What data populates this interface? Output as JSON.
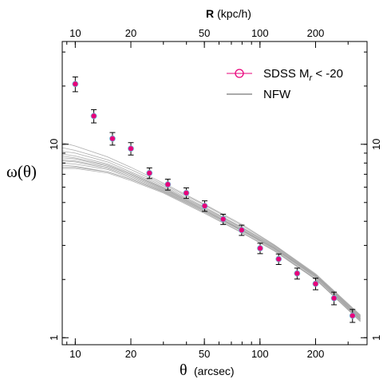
{
  "chart_data": {
    "type": "scatter",
    "log_x": true,
    "log_y": true,
    "xlim": [
      8.5,
      380
    ],
    "ylim": [
      0.92,
      34
    ],
    "x_ticks": [
      10,
      20,
      50,
      100,
      200
    ],
    "x_tick_labels": [
      "10",
      "20",
      "50",
      "100",
      "200"
    ],
    "y_ticks": [
      1,
      10
    ],
    "y_tick_labels": [
      "1",
      "10"
    ],
    "xlabel": "θ",
    "xlabel_unit": "(arcsec)",
    "ylabel": "ω(θ)",
    "top_axis": {
      "label": "R",
      "unit": "(kpc/h)",
      "ticks": [
        10,
        20,
        50,
        100,
        200
      ],
      "tick_labels": [
        "10",
        "20",
        "50",
        "100",
        "200"
      ]
    },
    "series": [
      {
        "name": "SDSS M_r < -20",
        "legend_label": "SDSS M",
        "legend_sub": "r",
        "legend_tail": " < -20",
        "marker": "circle",
        "color": "#e8007a",
        "errorbar_color": "#000000",
        "x": [
          10,
          12.6,
          15.9,
          20,
          25.2,
          31.7,
          39.9,
          50.2,
          63.2,
          79.6,
          100.2,
          126.2,
          158.9,
          200,
          251.8,
          317
        ],
        "y": [
          20.5,
          14.0,
          10.7,
          9.5,
          7.1,
          6.2,
          5.6,
          4.8,
          4.1,
          3.6,
          2.9,
          2.55,
          2.15,
          1.9,
          1.6,
          1.3
        ],
        "yerr": [
          1.8,
          1.1,
          0.8,
          0.7,
          0.45,
          0.4,
          0.35,
          0.3,
          0.25,
          0.22,
          0.18,
          0.16,
          0.14,
          0.13,
          0.12,
          0.1
        ]
      },
      {
        "name": "NFW",
        "color": "#a0a0a0",
        "legend_color": "#555555",
        "x": [
          8.5,
          10,
          15,
          20,
          30,
          50,
          80,
          120,
          200,
          350
        ],
        "y_curves": [
          [
            8.9,
            8.7,
            7.9,
            7.1,
            6.0,
            4.7,
            3.7,
            2.95,
            2.1,
            1.28
          ],
          [
            8.2,
            8.1,
            7.5,
            6.8,
            5.8,
            4.55,
            3.6,
            2.9,
            2.05,
            1.25
          ],
          [
            7.8,
            7.7,
            7.2,
            6.6,
            5.7,
            4.5,
            3.55,
            2.85,
            2.02,
            1.23
          ],
          [
            9.6,
            9.3,
            8.3,
            7.4,
            6.2,
            4.85,
            3.8,
            3.0,
            2.12,
            1.3
          ],
          [
            8.5,
            8.4,
            7.7,
            7.0,
            5.9,
            4.6,
            3.62,
            2.9,
            2.08,
            1.27
          ],
          [
            7.5,
            7.5,
            7.1,
            6.5,
            5.6,
            4.4,
            3.48,
            2.8,
            2.0,
            1.22
          ],
          [
            9.2,
            9.0,
            8.1,
            7.2,
            6.1,
            4.75,
            3.72,
            2.98,
            2.11,
            1.29
          ],
          [
            8.0,
            7.9,
            7.4,
            6.7,
            5.75,
            4.5,
            3.58,
            2.88,
            2.05,
            1.24
          ],
          [
            8.7,
            8.5,
            7.8,
            7.0,
            5.95,
            4.65,
            3.66,
            2.93,
            2.09,
            1.26
          ],
          [
            7.6,
            7.6,
            7.2,
            6.6,
            5.65,
            4.45,
            3.5,
            2.82,
            2.01,
            1.21
          ],
          [
            10.2,
            9.8,
            8.6,
            7.6,
            6.3,
            4.9,
            3.85,
            3.02,
            2.14,
            1.31
          ],
          [
            8.3,
            8.2,
            7.6,
            6.9,
            5.85,
            4.58,
            3.6,
            2.89,
            2.06,
            1.25
          ]
        ]
      }
    ],
    "legend": {
      "position": "top-right",
      "entries": [
        "SDSS M_r < -20",
        "NFW"
      ]
    },
    "grid": false
  }
}
